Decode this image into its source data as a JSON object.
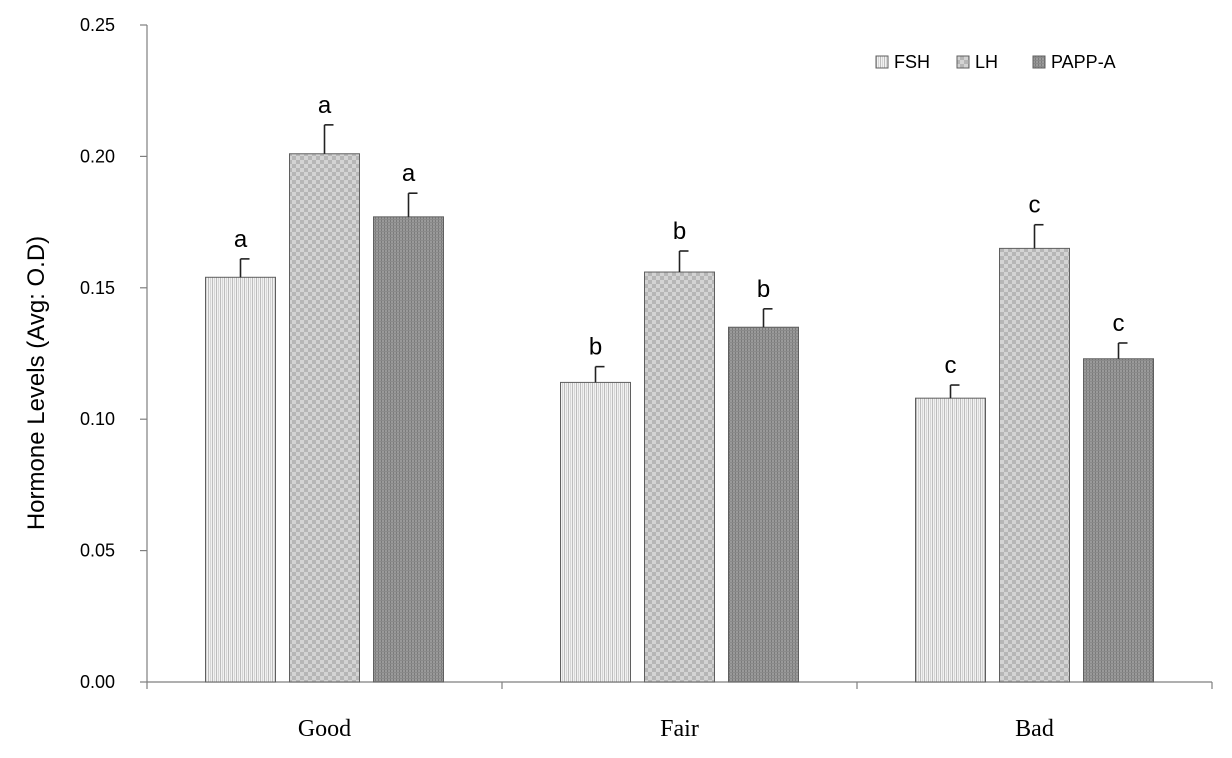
{
  "chart_data": {
    "type": "bar",
    "title": "",
    "xlabel": "",
    "ylabel": "Hormone Levels (Avg: O.D)",
    "categories": [
      "Good",
      "Fair",
      "Bad"
    ],
    "ylim": [
      0,
      0.25
    ],
    "yticks": [
      "0.00",
      "0.05",
      "0.10",
      "0.15",
      "0.20",
      "0.25"
    ],
    "grid": false,
    "legend_position": "top-right",
    "series": [
      {
        "name": "FSH",
        "values": [
          0.154,
          0.114,
          0.108
        ],
        "errors": [
          0.007,
          0.006,
          0.005
        ],
        "letters": [
          "a",
          "b",
          "c"
        ],
        "pattern": "vertical-stripes",
        "color": "#e2e2e2"
      },
      {
        "name": "LH",
        "values": [
          0.201,
          0.156,
          0.165
        ],
        "errors": [
          0.011,
          0.008,
          0.009
        ],
        "letters": [
          "a",
          "b",
          "c"
        ],
        "pattern": "checker",
        "color": "#c2c2c2"
      },
      {
        "name": "PAPP-A",
        "values": [
          0.177,
          0.135,
          0.123
        ],
        "errors": [
          0.009,
          0.007,
          0.006
        ],
        "letters": [
          "a",
          "b",
          "c"
        ],
        "pattern": "dense-stripes",
        "color": "#8e8e8e"
      }
    ]
  }
}
